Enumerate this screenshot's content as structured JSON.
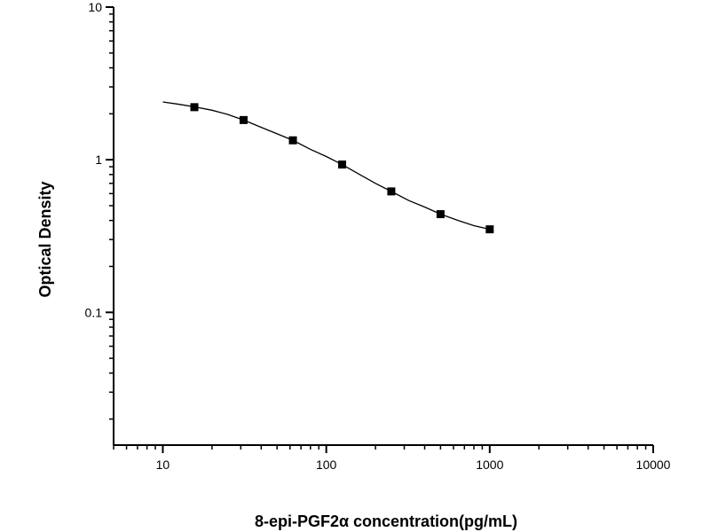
{
  "chart_data": {
    "type": "scatter",
    "title": "",
    "xlabel": "8-epi-PGF2α  concentration(pg/mL)",
    "ylabel": "Optical Density",
    "xscale": "log",
    "yscale": "log",
    "xlim": [
      5.0,
      10000
    ],
    "ylim": [
      0.0135,
      10
    ],
    "grid": false,
    "legend": "none",
    "x_ticks": [
      {
        "value": 10,
        "label": "10"
      },
      {
        "value": 100,
        "label": "100"
      },
      {
        "value": 1000,
        "label": "1000"
      },
      {
        "value": 10000,
        "label": "10000"
      }
    ],
    "y_ticks": [
      {
        "value": 0.1,
        "label": "0.1"
      },
      {
        "value": 1,
        "label": "1"
      },
      {
        "value": 10,
        "label": "10"
      }
    ],
    "series": [
      {
        "marker": "square",
        "color": "#000000",
        "x": [
          15.6,
          31.2,
          62.5,
          125,
          250,
          500,
          1000
        ],
        "y": [
          2.21,
          1.82,
          1.34,
          0.93,
          0.62,
          0.44,
          0.35
        ]
      }
    ],
    "fit_curve": {
      "color": "#000000",
      "x": [
        10,
        12.5,
        15.6,
        20,
        25,
        31.2,
        40,
        50,
        62.5,
        80,
        100,
        125,
        160,
        200,
        250,
        320,
        400,
        500,
        640,
        800,
        1000
      ],
      "y": [
        2.39,
        2.31,
        2.22,
        2.11,
        1.98,
        1.82,
        1.63,
        1.48,
        1.34,
        1.17,
        1.05,
        0.93,
        0.8,
        0.7,
        0.62,
        0.54,
        0.49,
        0.44,
        0.4,
        0.37,
        0.35
      ]
    }
  }
}
